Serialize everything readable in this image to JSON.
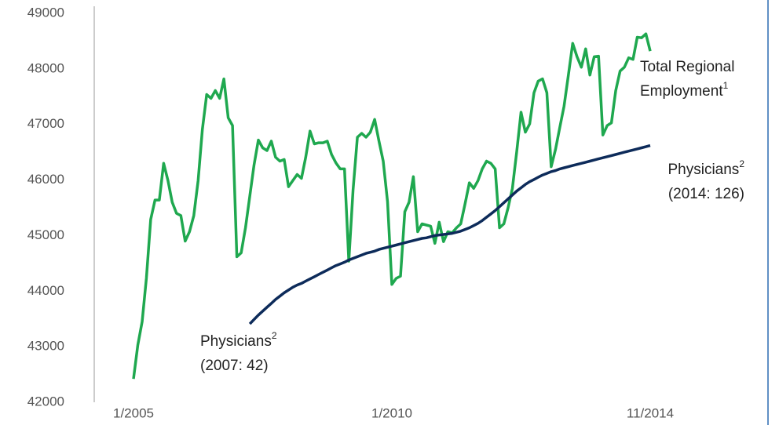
{
  "chart_data": {
    "type": "line",
    "categories": [
      "1/2005",
      null,
      null,
      null,
      null,
      null,
      null,
      null,
      null,
      null,
      null,
      null,
      null,
      null,
      null,
      null,
      null,
      null,
      null,
      null,
      null,
      null,
      null,
      null,
      null,
      null,
      null,
      null,
      null,
      null,
      null,
      null,
      null,
      null,
      null,
      null,
      null,
      null,
      null,
      null,
      null,
      null,
      null,
      null,
      null,
      null,
      null,
      null,
      null,
      null,
      null,
      null,
      null,
      null,
      null,
      null,
      null,
      null,
      null,
      null,
      "1/2010",
      null,
      null,
      null,
      null,
      null,
      null,
      null,
      null,
      null,
      null,
      null,
      null,
      null,
      null,
      null,
      null,
      null,
      null,
      null,
      null,
      null,
      null,
      null,
      null,
      null,
      null,
      null,
      null,
      null,
      null,
      null,
      null,
      null,
      null,
      null,
      null,
      null,
      null,
      null,
      null,
      null,
      null,
      null,
      null,
      null,
      null,
      null,
      null,
      null,
      null,
      null,
      null,
      null,
      null,
      null,
      null,
      null,
      null,
      null,
      "11/2014"
    ],
    "series": [
      {
        "color": "#1fa84f",
        "values": [
          42420,
          43030,
          43450,
          44230,
          45290,
          45640,
          45640,
          46300,
          45990,
          45600,
          45400,
          45360,
          44900,
          45070,
          45360,
          45990,
          46910,
          47540,
          47470,
          47610,
          47470,
          47820,
          47120,
          46980,
          44620,
          44690,
          45140,
          45710,
          46270,
          46720,
          46580,
          46530,
          46700,
          46410,
          46340,
          46370,
          45880,
          45990,
          46100,
          46030,
          46410,
          46880,
          46650,
          46670,
          46670,
          46700,
          46460,
          46310,
          46200,
          46200,
          44540,
          45820,
          46770,
          46840,
          46770,
          46860,
          47090,
          46700,
          46340,
          45610,
          44120,
          44230,
          44270,
          45430,
          45600,
          46060,
          45070,
          45210,
          45190,
          45170,
          44860,
          45240,
          44890,
          45070,
          45050,
          45140,
          45210,
          45570,
          45950,
          45850,
          45990,
          46200,
          46340,
          46300,
          46200,
          45140,
          45210,
          45500,
          45850,
          46510,
          47220,
          46860,
          47010,
          47570,
          47780,
          47820,
          47570,
          46240,
          46550,
          46950,
          47330,
          47890,
          48460,
          48220,
          48030,
          48360,
          47890,
          48220,
          48230,
          46810,
          46980,
          47030,
          47610,
          47960,
          48030,
          48200,
          48170,
          48570,
          48560,
          48630,
          48320
        ]
      },
      {
        "color": "#0d2b5a",
        "values": [
          null,
          null,
          null,
          null,
          null,
          null,
          null,
          null,
          null,
          null,
          null,
          null,
          null,
          null,
          null,
          null,
          null,
          null,
          null,
          null,
          null,
          null,
          null,
          null,
          null,
          null,
          null,
          43410,
          43490,
          43570,
          43640,
          43710,
          43780,
          43850,
          43910,
          43970,
          44020,
          44070,
          44110,
          44140,
          44180,
          44220,
          44260,
          44300,
          44340,
          44380,
          44420,
          44460,
          44490,
          44520,
          44560,
          44590,
          44620,
          44650,
          44680,
          44700,
          44720,
          44750,
          44770,
          44790,
          44810,
          44830,
          44850,
          44870,
          44890,
          44910,
          44930,
          44950,
          44960,
          44980,
          45000,
          45010,
          45020,
          45030,
          45040,
          45060,
          45080,
          45110,
          45140,
          45180,
          45220,
          45270,
          45330,
          45390,
          45450,
          45520,
          45590,
          45660,
          45730,
          45800,
          45860,
          45920,
          45970,
          46010,
          46050,
          46090,
          46120,
          46150,
          46170,
          46200,
          46220,
          46240,
          46260,
          46280,
          46300,
          46320,
          46340,
          46360,
          46380,
          46400,
          46420,
          46440,
          46460,
          46480,
          46500,
          46520,
          46540,
          46560,
          46580,
          46600,
          46620
        ]
      }
    ],
    "ylim": [
      42000,
      49000
    ],
    "yticks": [
      42000,
      43000,
      44000,
      45000,
      46000,
      47000,
      48000,
      49000
    ],
    "grid": false,
    "annotations": [
      {
        "lines": [
          {
            "text": "Total Regional"
          },
          {
            "text": "Employment",
            "sup": "1"
          }
        ]
      },
      {
        "lines": [
          {
            "text": "Physicians",
            "sup": "2"
          },
          {
            "text": "(2014: 126)"
          }
        ]
      },
      {
        "lines": [
          {
            "text": "Physicians",
            "sup": "2"
          },
          {
            "text": "(2007: 42)"
          }
        ]
      }
    ]
  }
}
